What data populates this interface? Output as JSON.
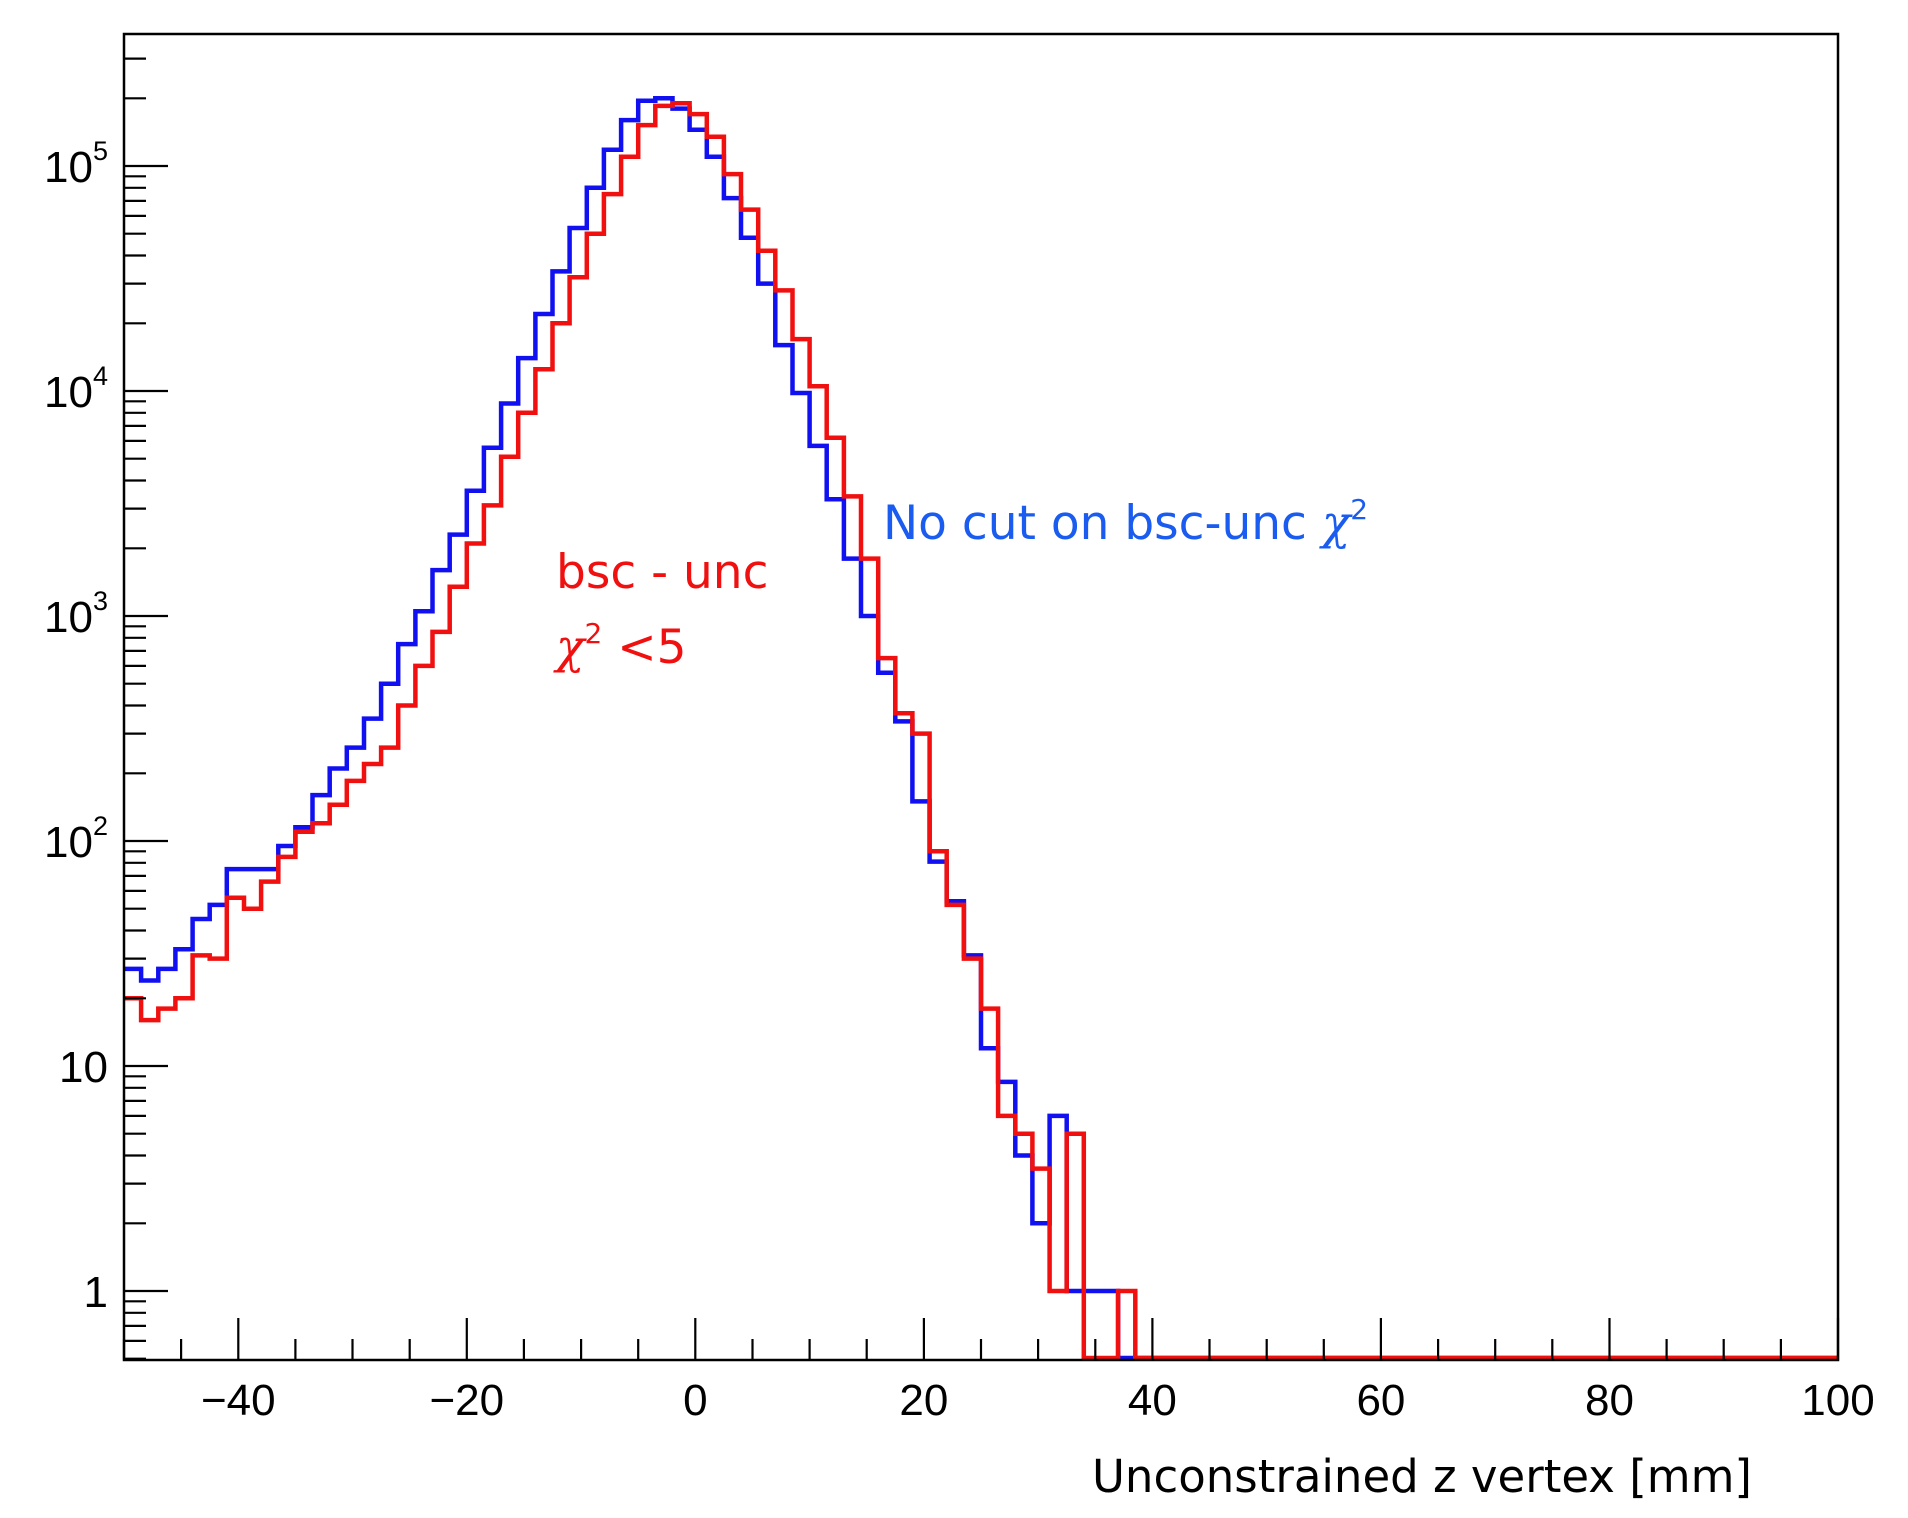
{
  "chart_data": {
    "type": "line",
    "subtype": "step-histogram",
    "xlabel": "Unconstrained z vertex [mm]",
    "ylabel": "",
    "xlim": [
      -50,
      100
    ],
    "ylim": [
      0.5,
      300000
    ],
    "y_scale": "log",
    "grid": false,
    "x_ticks": [
      "−40",
      "−20",
      "0",
      "20",
      "40",
      "60",
      "80",
      "100"
    ],
    "y_ticks": [
      {
        "base": "10",
        "exp": "5"
      },
      {
        "base": "10",
        "exp": "4"
      },
      {
        "base": "10",
        "exp": "3"
      },
      {
        "base": "10",
        "exp": "2"
      },
      {
        "base": "10",
        "exp": ""
      },
      {
        "base": "1",
        "exp": ""
      }
    ],
    "bin_edges": [
      -50,
      -48.5,
      -47,
      -45.5,
      -44,
      -42.5,
      -41,
      -39.5,
      -38,
      -36.5,
      -35,
      -33.5,
      -32,
      -30.5,
      -29,
      -27.5,
      -26,
      -24.5,
      -23,
      -21.5,
      -20,
      -18.5,
      -17,
      -15.5,
      -14,
      -12.5,
      -11,
      -9.5,
      -8,
      -6.5,
      -5,
      -3.5,
      -2,
      -0.5,
      1,
      2.5,
      4,
      5.5,
      7,
      8.5,
      10,
      11.5,
      13,
      14.5,
      16,
      17.5,
      19,
      20.5,
      22,
      23.5,
      25,
      26.5,
      28,
      29.5,
      31,
      32.5,
      34,
      35.5,
      37,
      38.5,
      40
    ],
    "tail_to": 100,
    "series": [
      {
        "color": "#1010f0",
        "values": [
          27,
          24,
          27,
          33,
          45,
          52,
          75,
          75,
          75,
          95,
          115,
          160,
          210,
          260,
          350,
          500,
          750,
          1050,
          1600,
          2300,
          3600,
          5600,
          8800,
          14000,
          22000,
          34000,
          53000,
          80000,
          118000,
          160000,
          195000,
          200000,
          180000,
          145000,
          110000,
          72000,
          48000,
          30000,
          16000,
          9800,
          5700,
          3300,
          1800,
          1000,
          560,
          340,
          150,
          81,
          54,
          31,
          12,
          8.5,
          4,
          2,
          6,
          1,
          1,
          1,
          0.5,
          0.5
        ],
        "tail": 0.5
      },
      {
        "color": "#f01010",
        "values": [
          20,
          16,
          18,
          20,
          31,
          30,
          56,
          50,
          66,
          85,
          110,
          120,
          145,
          185,
          220,
          260,
          400,
          600,
          850,
          1350,
          2100,
          3100,
          5100,
          8000,
          12500,
          20000,
          32000,
          50000,
          75000,
          110000,
          152000,
          185000,
          190000,
          170000,
          135000,
          92000,
          64000,
          42000,
          28000,
          17000,
          10500,
          6200,
          3400,
          1800,
          650,
          370,
          300,
          90,
          52,
          30,
          18,
          6,
          5,
          3.5,
          1,
          5,
          0.5,
          0.5,
          1,
          0.5
        ],
        "tail": 0.5
      }
    ],
    "annotations": [
      {
        "lines": [
          {
            "text": "No cut on bsc-unc ",
            "chi": "χ",
            "sup": "2"
          }
        ],
        "color": "#1a5cf0"
      },
      {
        "lines": [
          {
            "text": "bsc - unc"
          },
          {
            "text": " <5",
            "chi": "χ",
            "sup": "2",
            "chi_first": true
          }
        ],
        "color": "#f01010"
      }
    ]
  }
}
